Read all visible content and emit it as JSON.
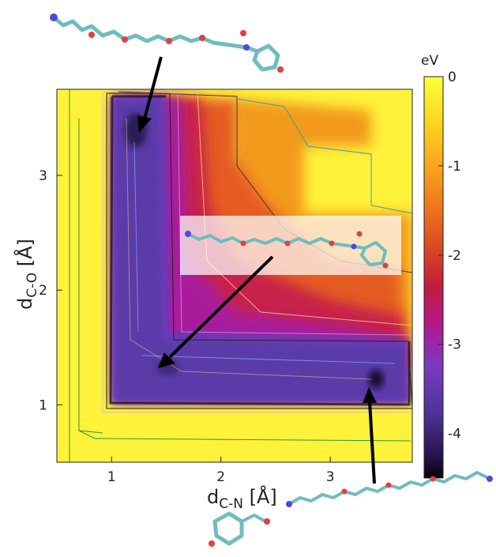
{
  "chart_data": {
    "type": "heatmap",
    "title": "",
    "xlabel": {
      "main": "d",
      "sub": "C-N",
      "unit": " [Å]"
    },
    "ylabel": {
      "main": "d",
      "sub": "C-O",
      "unit": " [Å]"
    },
    "xlim": [
      0.5,
      3.75
    ],
    "ylim": [
      0.5,
      3.75
    ],
    "x_ticks": [
      1,
      2,
      3
    ],
    "y_ticks": [
      1,
      2,
      3
    ],
    "x_tick_labels": [
      "1",
      "2",
      "3"
    ],
    "y_tick_labels": [
      "1",
      "2",
      "3"
    ],
    "colorbar": {
      "label": "eV",
      "range": [
        -4.5,
        0
      ],
      "ticks": [
        0,
        -1,
        -2,
        -3,
        -4
      ],
      "tick_labels": [
        "0",
        "-1",
        "-2",
        "-3",
        "-4"
      ]
    },
    "minima": [
      {
        "x": 1.2,
        "y": 3.4,
        "energy": -4.5
      },
      {
        "x": 1.45,
        "y": 1.35,
        "energy": -4.0
      },
      {
        "x": 3.35,
        "y": 1.2,
        "energy": -4.5
      }
    ],
    "grid": false,
    "legend": "none"
  }
}
